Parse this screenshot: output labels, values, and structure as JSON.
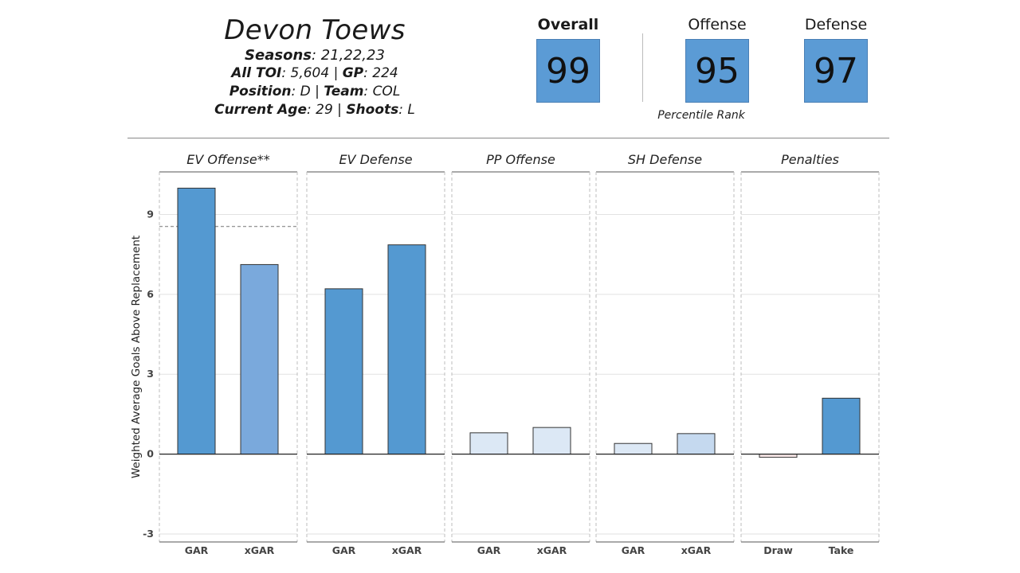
{
  "header": {
    "player_name": "Devon Toews",
    "seasons_label": "Seasons",
    "seasons_value": "21,22,23",
    "toi_label": "All TOI",
    "toi_value": "5,604",
    "gp_label": "GP",
    "gp_value": "224",
    "position_label": "Position",
    "position_value": "D",
    "team_label": "Team",
    "team_value": "COL",
    "age_label": "Current Age",
    "age_value": "29",
    "shoots_label": "Shoots",
    "shoots_value": "L"
  },
  "ranks": {
    "overall_label": "Overall",
    "overall_value": "99",
    "offense_label": "Offense",
    "offense_value": "95",
    "defense_label": "Defense",
    "defense_value": "97",
    "caption": "Percentile Rank"
  },
  "chart_data": {
    "type": "bar",
    "ylabel": "Weighted Average Goals Above Replacement",
    "ylim": [
      -3.3,
      10.6
    ],
    "yticks": [
      -3,
      0,
      3,
      6,
      9
    ],
    "grid": true,
    "facets": [
      {
        "title": "EV Offense**",
        "categories": [
          "GAR",
          "xGAR"
        ],
        "values": [
          9.99,
          7.12
        ],
        "colors": [
          "#5499d1",
          "#7aa9dc"
        ],
        "reference_line": 8.55
      },
      {
        "title": "EV Defense",
        "categories": [
          "GAR",
          "xGAR"
        ],
        "values": [
          6.21,
          7.86
        ],
        "colors": [
          "#5499d1",
          "#5499d1"
        ]
      },
      {
        "title": "PP Offense",
        "categories": [
          "GAR",
          "xGAR"
        ],
        "values": [
          0.8,
          1.0
        ],
        "colors": [
          "#dce8f5",
          "#dce8f5"
        ]
      },
      {
        "title": "SH Defense",
        "categories": [
          "GAR",
          "xGAR"
        ],
        "values": [
          0.4,
          0.77
        ],
        "colors": [
          "#dce8f5",
          "#c5d9ef"
        ]
      },
      {
        "title": "Penalties",
        "categories": [
          "Draw",
          "Take"
        ],
        "values": [
          -0.12,
          2.1
        ],
        "colors": [
          "#fbeaea",
          "#5499d1"
        ]
      }
    ]
  }
}
